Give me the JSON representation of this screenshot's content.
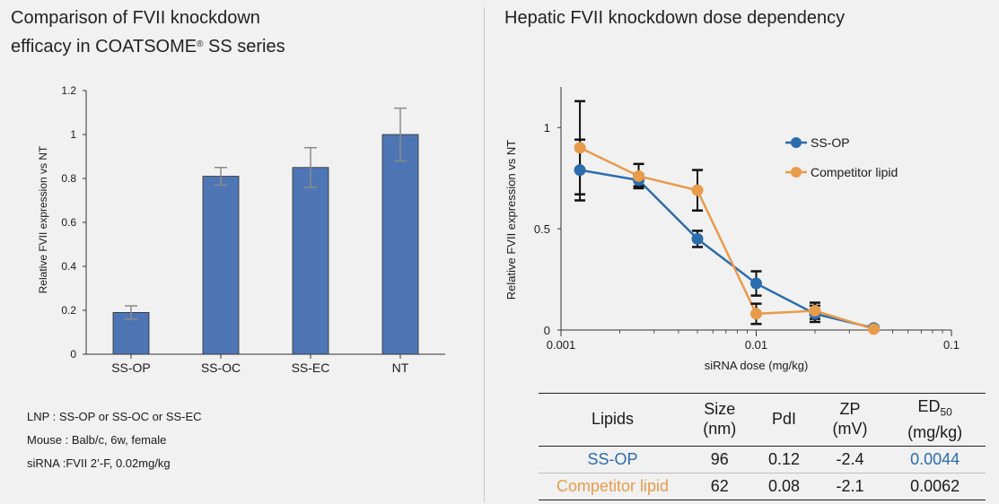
{
  "left_title": {
    "line1": "Comparison of FVII knockdown",
    "line2_prefix": "efficacy in COATSOME",
    "line2_sup": "®",
    "line2_suffix": " SS series"
  },
  "right_title": "Hepatic FVII knockdown dose dependency",
  "notes": [
    "LNP : SS-OP or SS-OC or SS-EC",
    "Mouse : Balb/c, 6w, female",
    "siRNA :FVII 2’-F, 0.02mg/kg"
  ],
  "colors": {
    "bar": "#4f76b4",
    "ssop": "#2b6cad",
    "competitor": "#e89b4b"
  },
  "chart_data": [
    {
      "type": "bar",
      "title": "Comparison of FVII knockdown efficacy in COATSOME® SS series",
      "ylabel": "Relative FVII expression vs NT",
      "xlabel": "",
      "categories": [
        "SS-OP",
        "SS-OC",
        "SS-EC",
        "NT"
      ],
      "values": [
        0.19,
        0.81,
        0.85,
        1.0
      ],
      "errors": [
        0.03,
        0.04,
        0.09,
        0.12
      ],
      "ylim": [
        0,
        1.2
      ],
      "yticks": [
        "0",
        "0.2",
        "0.4",
        "0.6",
        "0.8",
        "1",
        "1.2"
      ],
      "grid": false
    },
    {
      "type": "line",
      "title": "Hepatic FVII knockdown dose dependency",
      "xlabel": "siRNA dose (mg/kg)",
      "ylabel": "Relative FVII expression vs NT",
      "x_scale": "log",
      "xlim": [
        0.001,
        0.1
      ],
      "xticks": [
        "0.001",
        "0.01",
        "0.1"
      ],
      "ylim": [
        0,
        1.2
      ],
      "yticks": [
        "0",
        "0.5",
        "1"
      ],
      "grid": false,
      "legend_position": "top-right",
      "series": [
        {
          "name": "SS-OP",
          "x": [
            0.00125,
            0.0025,
            0.005,
            0.01,
            0.02,
            0.04
          ],
          "y": [
            0.79,
            0.74,
            0.45,
            0.23,
            0.08,
            0.01
          ],
          "err": [
            0.15,
            0.03,
            0.04,
            0.06,
            0.04,
            0.01
          ]
        },
        {
          "name": "Competitor lipid",
          "x": [
            0.00125,
            0.0025,
            0.005,
            0.01,
            0.02,
            0.04
          ],
          "y": [
            0.9,
            0.76,
            0.69,
            0.08,
            0.095,
            0.005
          ],
          "err": [
            0.23,
            0.06,
            0.1,
            0.05,
            0.04,
            0.01
          ]
        }
      ]
    }
  ],
  "table": {
    "headers": [
      {
        "line1": "Lipids",
        "line2": ""
      },
      {
        "line1": "Size",
        "line2": "(nm)"
      },
      {
        "line1": "PdI",
        "line2": ""
      },
      {
        "line1": "ZP",
        "line2": "(mV)"
      },
      {
        "line1": "ED",
        "line1_sub": "50",
        "line2": "(mg/kg)"
      }
    ],
    "rows": [
      {
        "lipid": "SS-OP",
        "size": "96",
        "pdi": "0.12",
        "zp": "-2.4",
        "ed50": "0.0044"
      },
      {
        "lipid": "Competitor lipid",
        "size": "62",
        "pdi": "0.08",
        "zp": "-2.1",
        "ed50": "0.0062"
      }
    ]
  }
}
